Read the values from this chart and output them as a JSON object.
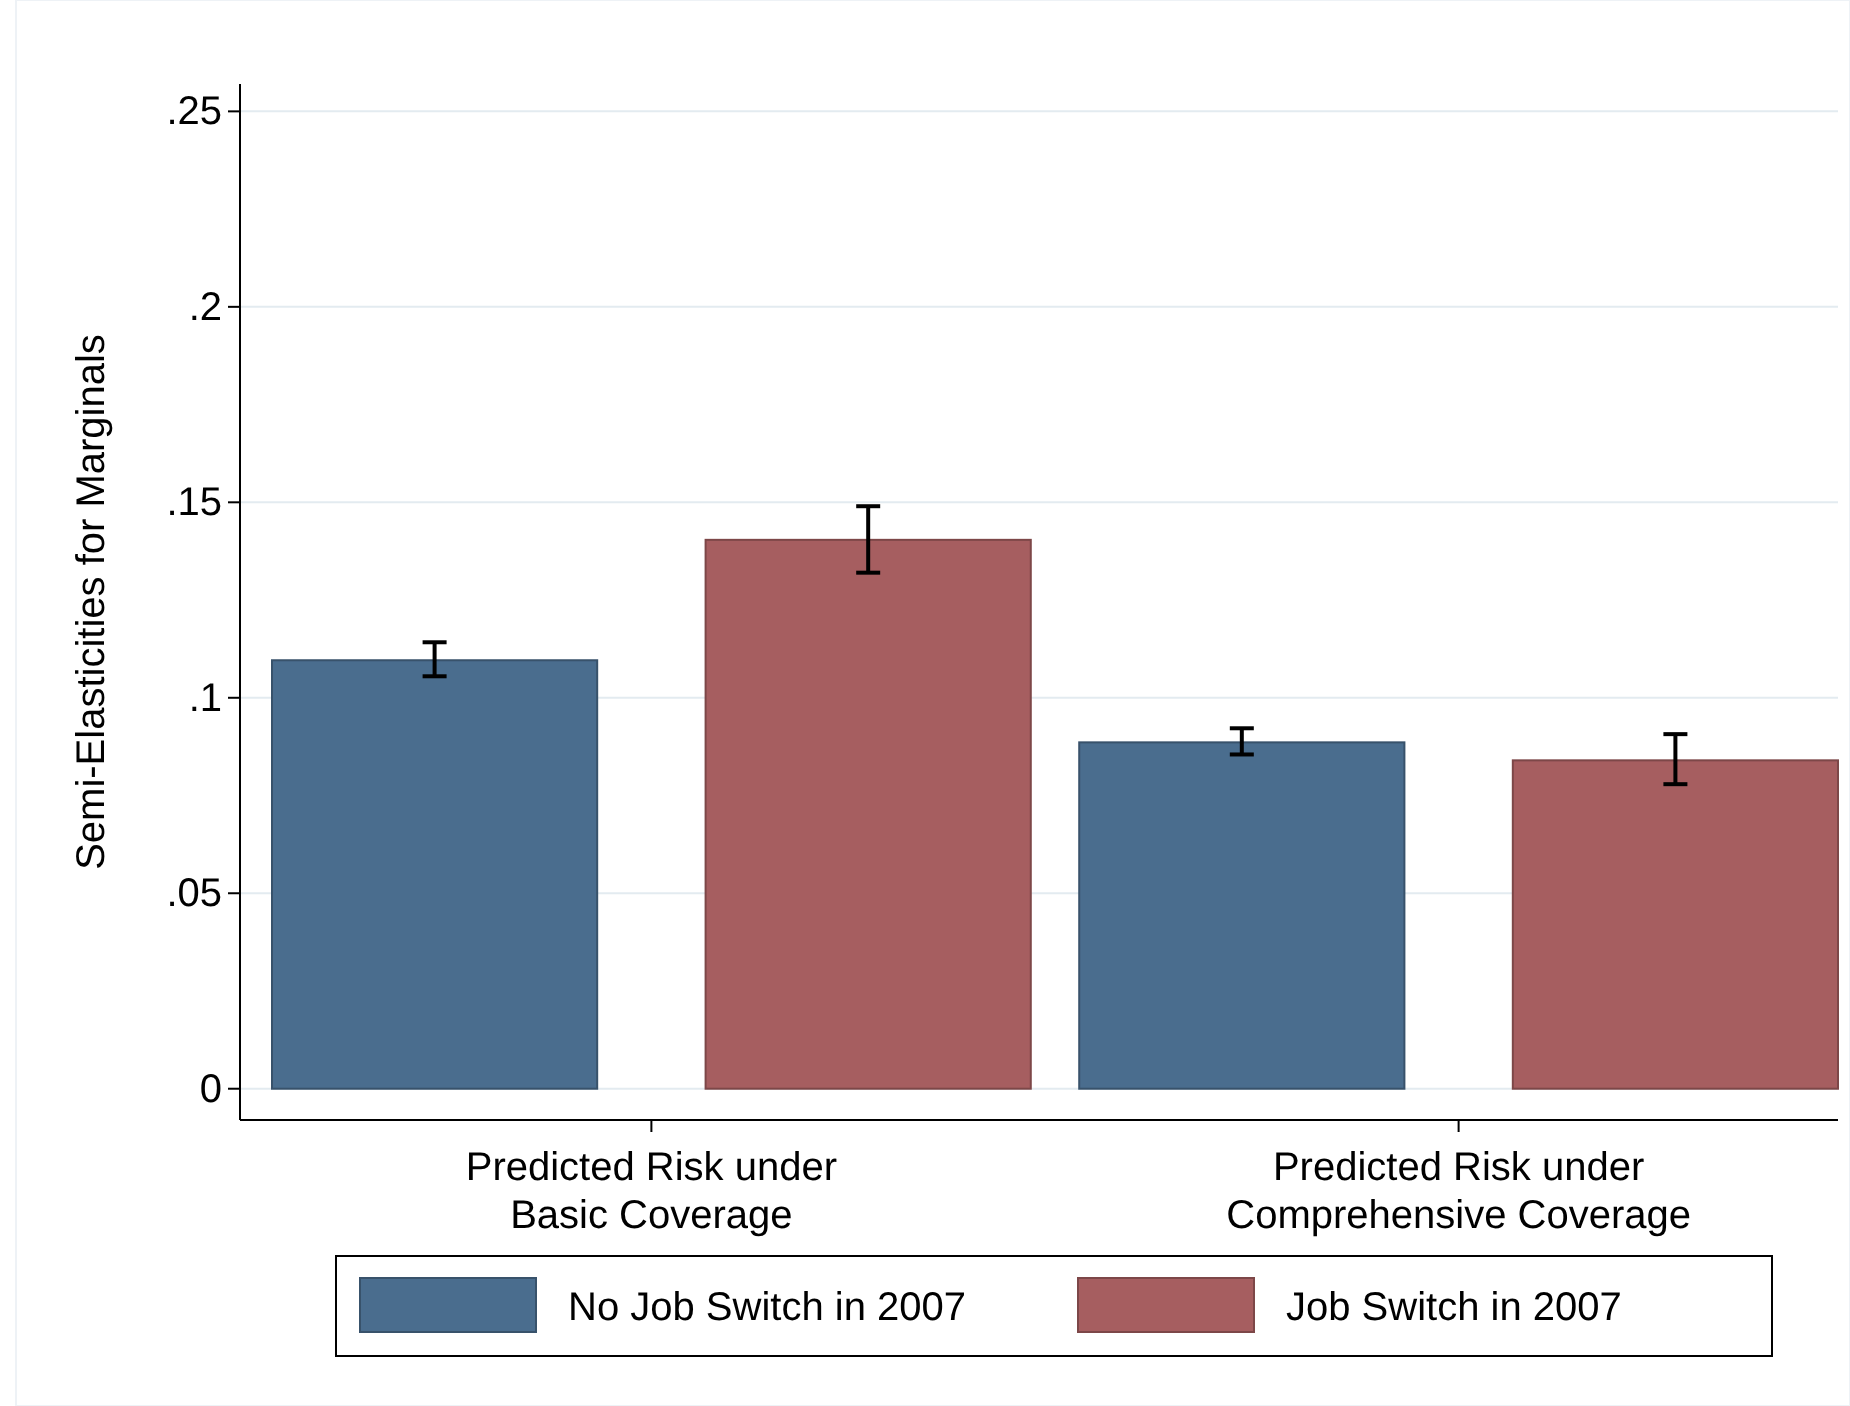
{
  "chart_data": {
    "type": "bar",
    "ylabel": "Semi-Elasticities for Marginals",
    "categories": [
      "Predicted Risk under Basic Coverage",
      "Predicted Risk under Comprehensive Coverage"
    ],
    "series": [
      {
        "name": "No Job Switch in 2007",
        "color": "#4a6d8e",
        "values": [
          0.1096,
          0.0886
        ],
        "errors": [
          [
            0.1055,
            0.1142
          ],
          [
            0.0855,
            0.0922
          ]
        ]
      },
      {
        "name": "Job Switch in 2007",
        "color": "#a65e60",
        "values": [
          0.1404,
          0.084
        ],
        "errors": [
          [
            0.132,
            0.149
          ],
          [
            0.0779,
            0.0907
          ]
        ]
      }
    ],
    "ylim": [
      -0.008,
      0.257
    ],
    "yticks": [
      {
        "value": 0,
        "label": "0"
      },
      {
        "value": 0.05,
        "label": ".05"
      },
      {
        "value": 0.1,
        "label": ".1"
      },
      {
        "value": 0.15,
        "label": ".15"
      },
      {
        "value": 0.2,
        "label": ".2"
      },
      {
        "value": 0.25,
        "label": ".25"
      }
    ],
    "grid": "y",
    "legend": "bottom"
  }
}
